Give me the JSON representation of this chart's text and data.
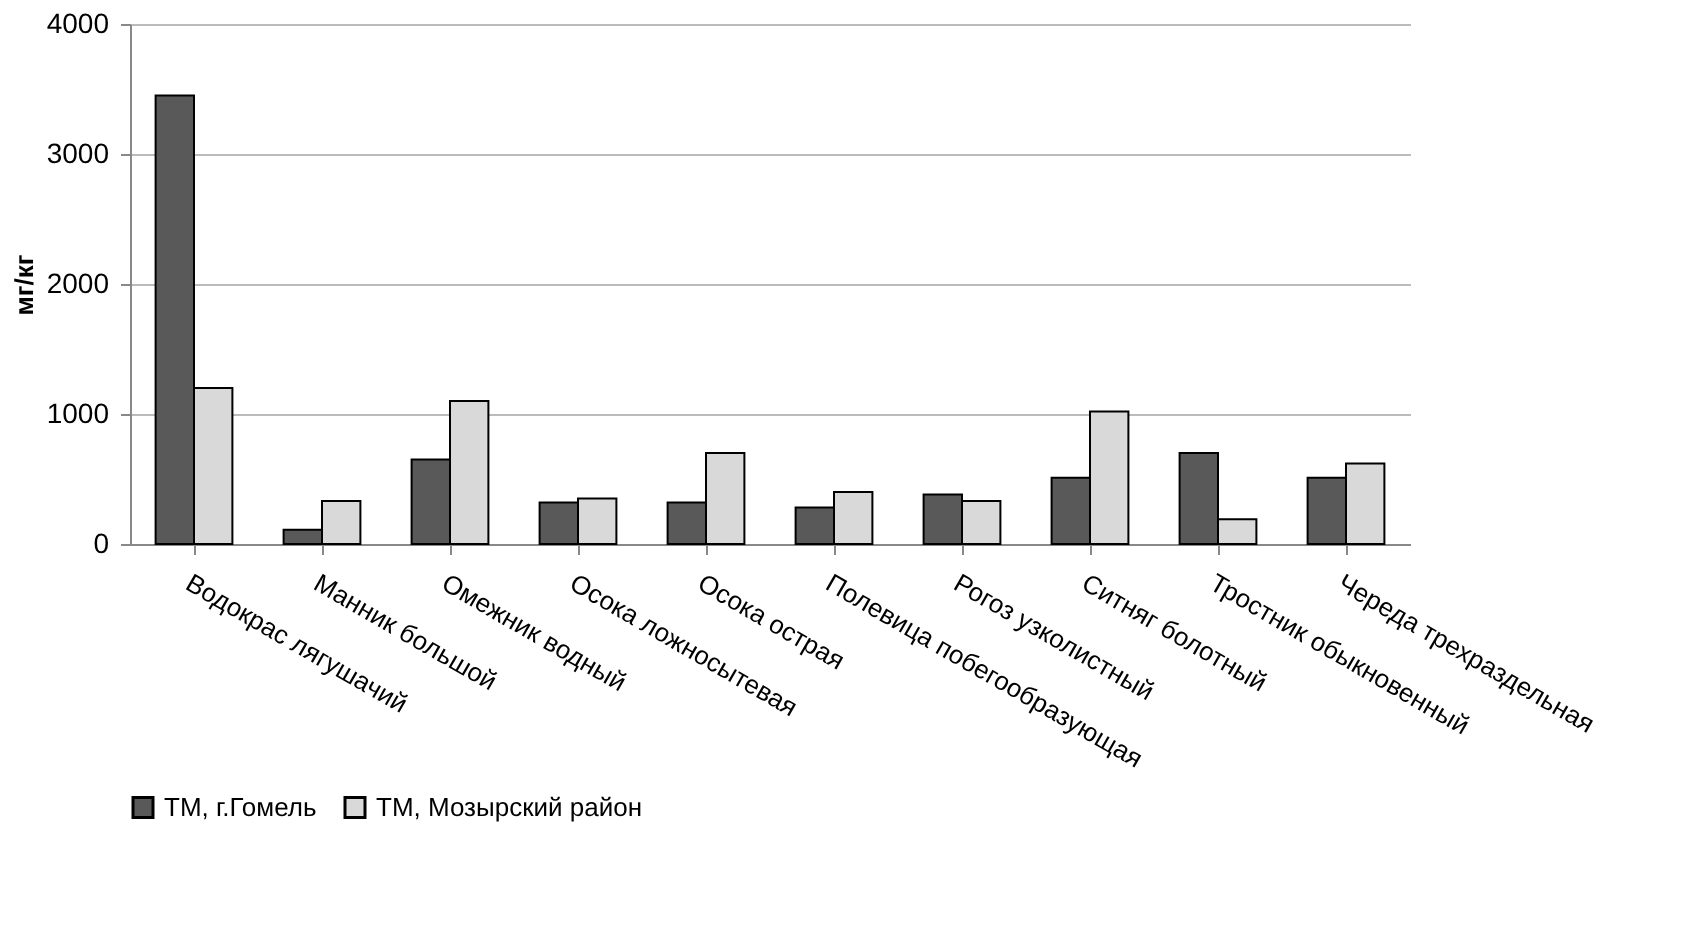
{
  "chart_data": {
    "type": "bar",
    "ylabel": "мг/кг",
    "categories": [
      "Водокрас лягушачий",
      "Манник большой",
      "Омежник водный",
      "Осока ложносытевая",
      "Осока острая",
      "Полевица побегообразующая",
      "Рогоз узколистный",
      "Ситняг болотный",
      "Тростник обыкновенный",
      "Череда трехраздельная"
    ],
    "series": [
      {
        "name": "ТМ, г.Гомель",
        "color": "#595959",
        "values": [
          3450,
          110,
          650,
          320,
          320,
          280,
          380,
          510,
          700,
          510
        ]
      },
      {
        "name": "ТМ, Мозырский район",
        "color": "#d9d9d9",
        "values": [
          1200,
          330,
          1100,
          350,
          700,
          400,
          330,
          1020,
          190,
          620
        ]
      }
    ],
    "ylim": [
      0,
      4000
    ],
    "yticks": [
      0,
      1000,
      2000,
      3000,
      4000
    ],
    "grid": "y",
    "legend": "bottom"
  }
}
